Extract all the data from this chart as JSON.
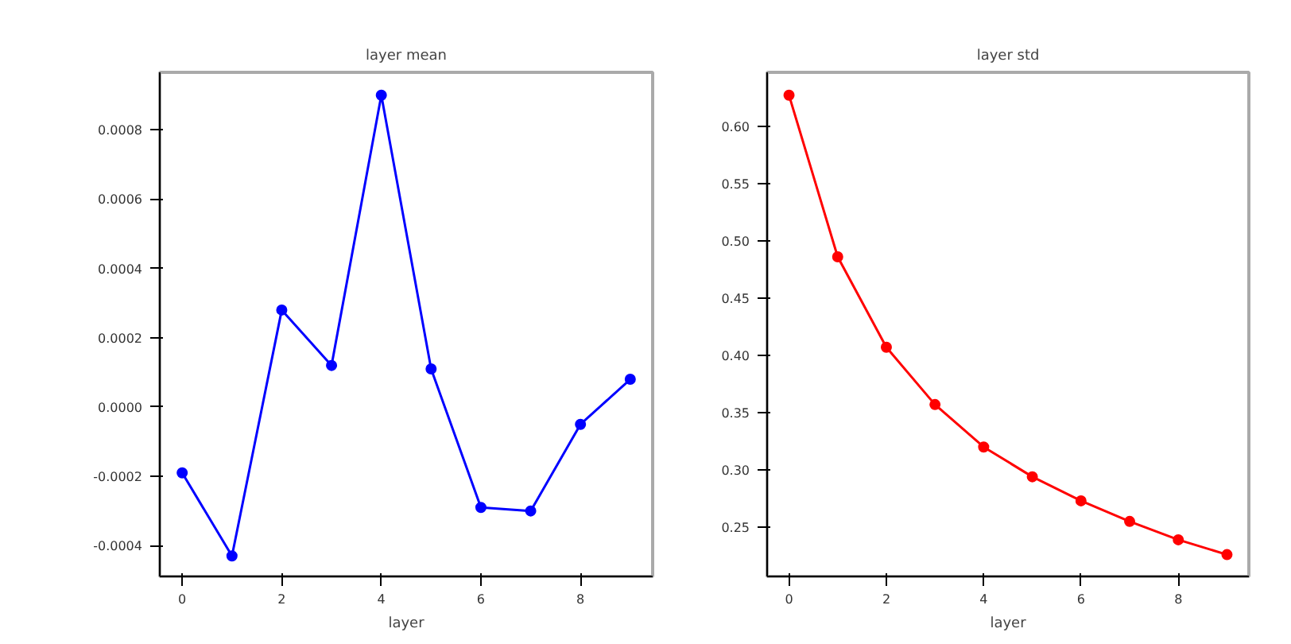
{
  "chart_data": [
    {
      "type": "line",
      "title": "layer mean",
      "xlabel": "layer",
      "x": [
        0,
        1,
        2,
        3,
        4,
        5,
        6,
        7,
        8,
        9
      ],
      "series": [
        {
          "color": "#0000ff",
          "values": [
            -0.00019,
            -0.00043,
            0.00028,
            0.00012,
            0.0009,
            0.00011,
            -0.00029,
            -0.0003,
            -5e-05,
            8e-05
          ]
        }
      ],
      "xlim": [
        -0.45,
        9.45
      ],
      "xticks": [
        0,
        2,
        4,
        6,
        8
      ],
      "ylim": [
        -0.000489,
        0.000966
      ],
      "yticks": [
        {
          "value": -0.0004,
          "label": "-0.0004"
        },
        {
          "value": -0.0002,
          "label": "-0.0002"
        },
        {
          "value": 0,
          "label": "0.0000"
        },
        {
          "value": 0.0002,
          "label": "0.0002"
        },
        {
          "value": 0.0004,
          "label": "0.0004"
        },
        {
          "value": 0.0006,
          "label": "0.0006"
        },
        {
          "value": 0.0008,
          "label": "0.0008"
        }
      ],
      "grid": false,
      "marker": "circle",
      "line_style": "solid"
    },
    {
      "type": "line",
      "title": "layer std",
      "xlabel": "layer",
      "x": [
        0,
        1,
        2,
        3,
        4,
        5,
        6,
        7,
        8,
        9
      ],
      "series": [
        {
          "color": "#ff0000",
          "values": [
            0.627,
            0.486,
            0.407,
            0.357,
            0.32,
            0.294,
            0.273,
            0.255,
            0.239,
            0.226
          ]
        }
      ],
      "xlim": [
        -0.45,
        9.45
      ],
      "xticks": [
        0,
        2,
        4,
        6,
        8
      ],
      "ylim": [
        0.207,
        0.647
      ],
      "yticks": [
        {
          "value": 0.25,
          "label": "0.25"
        },
        {
          "value": 0.3,
          "label": "0.30"
        },
        {
          "value": 0.35,
          "label": "0.35"
        },
        {
          "value": 0.4,
          "label": "0.40"
        },
        {
          "value": 0.45,
          "label": "0.45"
        },
        {
          "value": 0.5,
          "label": "0.50"
        },
        {
          "value": 0.55,
          "label": "0.55"
        },
        {
          "value": 0.6,
          "label": "0.60"
        }
      ],
      "grid": false,
      "marker": "circle",
      "line_style": "solid"
    }
  ]
}
